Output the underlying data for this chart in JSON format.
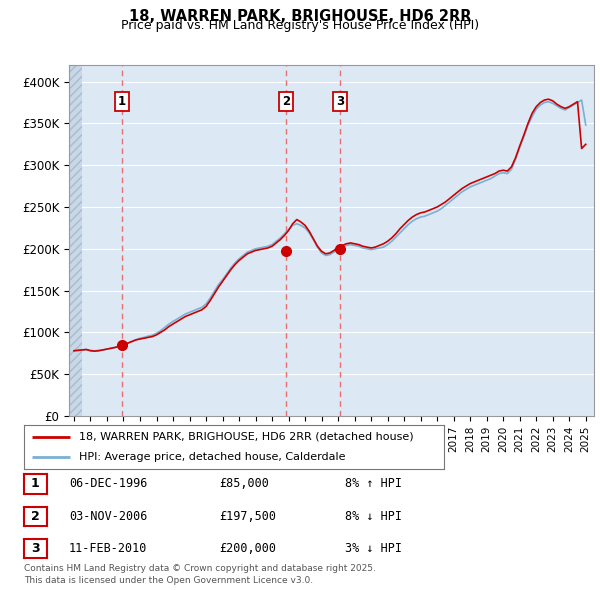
{
  "title1": "18, WARREN PARK, BRIGHOUSE, HD6 2RR",
  "title2": "Price paid vs. HM Land Registry's House Price Index (HPI)",
  "bg_color": "#ffffff",
  "plot_bg": "#dce9f5",
  "grid_color": "#ffffff",
  "ylim": [
    0,
    420000
  ],
  "yticks": [
    0,
    50000,
    100000,
    150000,
    200000,
    250000,
    300000,
    350000,
    400000
  ],
  "ytick_labels": [
    "£0",
    "£50K",
    "£100K",
    "£150K",
    "£200K",
    "£250K",
    "£300K",
    "£350K",
    "£400K"
  ],
  "xlim_left": 1993.7,
  "xlim_right": 2025.5,
  "sale_dates_num": [
    1996.92,
    2006.84,
    2010.11
  ],
  "sale_prices": [
    85000,
    197500,
    200000
  ],
  "sale_labels": [
    "1",
    "2",
    "3"
  ],
  "legend_line1": "18, WARREN PARK, BRIGHOUSE, HD6 2RR (detached house)",
  "legend_line2": "HPI: Average price, detached house, Calderdale",
  "table_rows": [
    [
      "1",
      "06-DEC-1996",
      "£85,000",
      "8% ↑ HPI"
    ],
    [
      "2",
      "03-NOV-2006",
      "£197,500",
      "8% ↓ HPI"
    ],
    [
      "3",
      "11-FEB-2010",
      "£200,000",
      "3% ↓ HPI"
    ]
  ],
  "footnote": "Contains HM Land Registry data © Crown copyright and database right 2025.\nThis data is licensed under the Open Government Licence v3.0.",
  "line_color_red": "#cc0000",
  "line_color_blue": "#7ab0d4",
  "sale_marker_color": "#cc0000",
  "dashed_line_color": "#e87070",
  "years_start": 1994,
  "years_end": 2025,
  "hpi_data": {
    "years": [
      1994.0,
      1994.25,
      1994.5,
      1994.75,
      1995.0,
      1995.25,
      1995.5,
      1995.75,
      1996.0,
      1996.25,
      1996.5,
      1996.75,
      1997.0,
      1997.25,
      1997.5,
      1997.75,
      1998.0,
      1998.25,
      1998.5,
      1998.75,
      1999.0,
      1999.25,
      1999.5,
      1999.75,
      2000.0,
      2000.25,
      2000.5,
      2000.75,
      2001.0,
      2001.25,
      2001.5,
      2001.75,
      2002.0,
      2002.25,
      2002.5,
      2002.75,
      2003.0,
      2003.25,
      2003.5,
      2003.75,
      2004.0,
      2004.25,
      2004.5,
      2004.75,
      2005.0,
      2005.25,
      2005.5,
      2005.75,
      2006.0,
      2006.25,
      2006.5,
      2006.75,
      2007.0,
      2007.25,
      2007.5,
      2007.75,
      2008.0,
      2008.25,
      2008.5,
      2008.75,
      2009.0,
      2009.25,
      2009.5,
      2009.75,
      2010.0,
      2010.25,
      2010.5,
      2010.75,
      2011.0,
      2011.25,
      2011.5,
      2011.75,
      2012.0,
      2012.25,
      2012.5,
      2012.75,
      2013.0,
      2013.25,
      2013.5,
      2013.75,
      2014.0,
      2014.25,
      2014.5,
      2014.75,
      2015.0,
      2015.25,
      2015.5,
      2015.75,
      2016.0,
      2016.25,
      2016.5,
      2016.75,
      2017.0,
      2017.25,
      2017.5,
      2017.75,
      2018.0,
      2018.25,
      2018.5,
      2018.75,
      2019.0,
      2019.25,
      2019.5,
      2019.75,
      2020.0,
      2020.25,
      2020.5,
      2020.75,
      2021.0,
      2021.25,
      2021.5,
      2021.75,
      2022.0,
      2022.25,
      2022.5,
      2022.75,
      2023.0,
      2023.25,
      2023.5,
      2023.75,
      2024.0,
      2024.25,
      2024.5,
      2024.75,
      2025.0
    ],
    "hpi_values": [
      78000,
      78500,
      79000,
      79500,
      78500,
      78000,
      78500,
      79000,
      80000,
      81000,
      82000,
      83500,
      85000,
      87000,
      89000,
      91000,
      93000,
      94000,
      95500,
      96500,
      99000,
      102000,
      106000,
      110000,
      113000,
      116000,
      119000,
      122000,
      124000,
      126000,
      128000,
      130000,
      134000,
      141000,
      149000,
      157000,
      163000,
      170000,
      177000,
      183000,
      188000,
      192000,
      196000,
      198000,
      200000,
      201000,
      202000,
      203000,
      205000,
      209000,
      213000,
      218000,
      223000,
      228000,
      230000,
      228000,
      225000,
      219000,
      211000,
      202000,
      195000,
      192000,
      193000,
      196000,
      200000,
      202000,
      204000,
      205000,
      204000,
      203000,
      201000,
      200000,
      199000,
      200000,
      201000,
      202000,
      205000,
      209000,
      214000,
      219000,
      224000,
      229000,
      233000,
      236000,
      238000,
      239000,
      241000,
      243000,
      245000,
      248000,
      252000,
      256000,
      260000,
      264000,
      268000,
      271000,
      274000,
      276000,
      278000,
      280000,
      282000,
      284000,
      287000,
      290000,
      291000,
      290000,
      295000,
      307000,
      321000,
      334000,
      348000,
      358000,
      367000,
      372000,
      375000,
      376000,
      374000,
      371000,
      368000,
      366000,
      369000,
      372000,
      375000,
      378000,
      348000
    ],
    "red_values": [
      78000,
      78500,
      79000,
      79500,
      78000,
      77500,
      78000,
      79000,
      80000,
      81000,
      82000,
      83500,
      85000,
      87000,
      89000,
      91000,
      92000,
      93000,
      94000,
      95000,
      97000,
      100000,
      103000,
      107000,
      110000,
      113000,
      116000,
      119000,
      121000,
      123000,
      125000,
      127000,
      131000,
      138000,
      146000,
      154000,
      161000,
      168000,
      175000,
      181000,
      186000,
      190000,
      194000,
      196000,
      198000,
      199000,
      200000,
      201000,
      203000,
      207000,
      211000,
      216000,
      222000,
      230000,
      235000,
      232000,
      228000,
      221000,
      212000,
      203000,
      197000,
      194000,
      195000,
      198000,
      202000,
      204000,
      206000,
      207000,
      206000,
      205000,
      203000,
      202000,
      201000,
      202000,
      204000,
      206000,
      209000,
      213000,
      218000,
      224000,
      229000,
      234000,
      238000,
      241000,
      243000,
      244000,
      246000,
      248000,
      250000,
      253000,
      256000,
      260000,
      264000,
      268000,
      272000,
      275000,
      278000,
      280000,
      282000,
      284000,
      286000,
      288000,
      290000,
      293000,
      294000,
      293000,
      298000,
      309000,
      323000,
      336000,
      350000,
      362000,
      370000,
      375000,
      378000,
      379000,
      377000,
      373000,
      370000,
      368000,
      370000,
      373000,
      376000,
      320000,
      325000
    ]
  }
}
